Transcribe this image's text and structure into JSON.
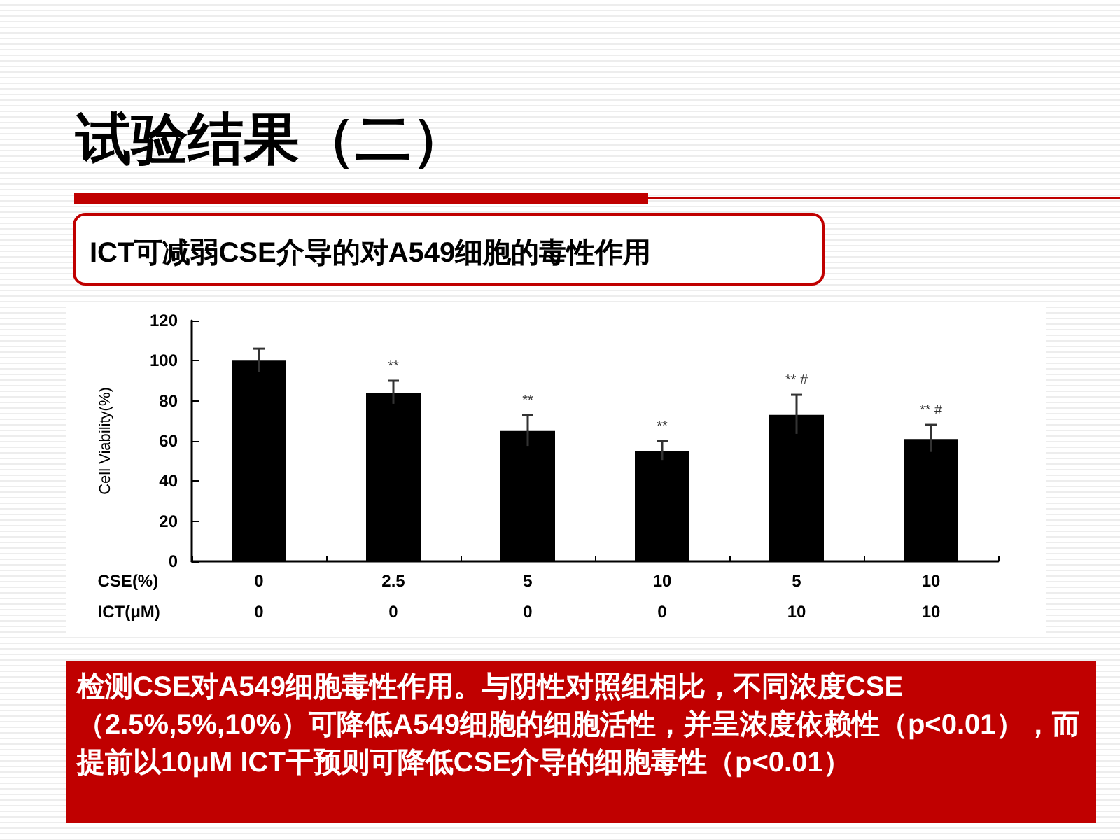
{
  "chart_data": {
    "type": "bar",
    "title": "试验结果（二）",
    "subtitle": "ICT可减弱CSE介导的对A549细胞的毒性作用",
    "xlabel": "CSE(%)\nICT(μM)",
    "ylabel": "Cell Viability(%)",
    "categories": [
      "0\n0",
      "2.5\n0",
      "5\n0",
      "10\n0",
      "5\n10",
      "10\n10"
    ],
    "values": [
      100,
      84,
      65,
      55,
      73,
      61
    ],
    "errors": [
      6,
      6,
      8,
      5,
      10,
      7
    ],
    "color": "#000000",
    "value_labels": [
      null,
      "**",
      "**",
      "**",
      "** #",
      "** #"
    ],
    "ylim": [
      0,
      120
    ],
    "yticks": [
      0,
      20,
      40,
      60,
      80,
      100,
      120
    ],
    "annotations": [
      "检测CSE对A549细胞毒性作用。与阴性对照组相比，不同浓度CSE（2.5%,5%,10%）可降低A549细胞的细胞活性，并呈浓度依赖性（p<0.01），而提前以10μM ICT干预则可降低CSE介导的细胞毒性（p<0.01）"
    ]
  }
}
